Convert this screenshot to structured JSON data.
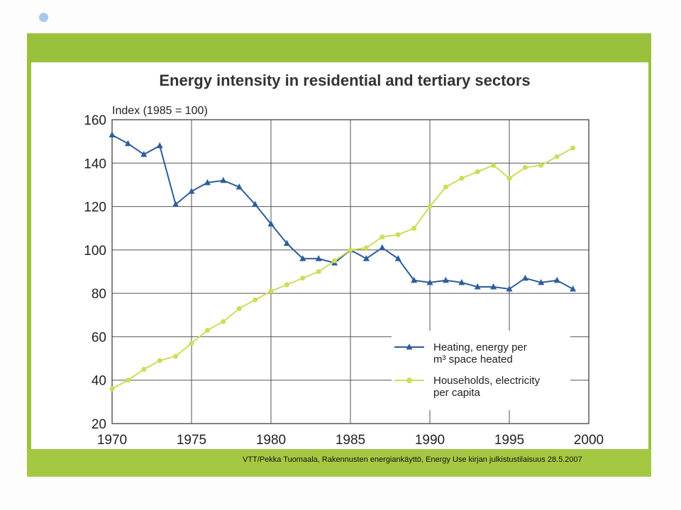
{
  "source_text": "VTT/Pekka Tuomaala, Rakennusten energiankäyttö, Energy Use kirjan julkistustilaisuus 28.5.2007",
  "colors": {
    "frame": "#99c13c",
    "heating": "#2e5d9a",
    "households": "#cfdc5a"
  },
  "chart_data": {
    "type": "line",
    "title": "Energy intensity in residential and tertiary sectors",
    "ylabel": "Index (1985 = 100)",
    "xlabel": "",
    "xlim": [
      1970,
      2000
    ],
    "ylim": [
      20,
      160
    ],
    "xticks": [
      1970,
      1975,
      1980,
      1985,
      1990,
      1995,
      2000
    ],
    "yticks": [
      20,
      40,
      60,
      80,
      100,
      120,
      140,
      160
    ],
    "grid": true,
    "legend_position": "bottom-right",
    "series": [
      {
        "name": "Heating, energy per m³ space heated",
        "legend_lines": [
          "Heating, energy per",
          "m³ space heated"
        ],
        "marker": "triangle",
        "color": "#2e5d9a",
        "x": [
          1970,
          1971,
          1972,
          1973,
          1974,
          1975,
          1976,
          1977,
          1978,
          1979,
          1980,
          1981,
          1982,
          1983,
          1984,
          1985,
          1986,
          1987,
          1988,
          1989,
          1990,
          1991,
          1992,
          1993,
          1994,
          1995,
          1996,
          1997,
          1998,
          1999
        ],
        "y": [
          153,
          149,
          144,
          148,
          121,
          127,
          131,
          132,
          129,
          121,
          112,
          103,
          96,
          96,
          94,
          100,
          96,
          101,
          96,
          86,
          85,
          86,
          85,
          83,
          83,
          82,
          87,
          85,
          86,
          82
        ]
      },
      {
        "name": "Households, electricity per capita",
        "legend_lines": [
          "Households, electricity",
          "per capita"
        ],
        "marker": "circle",
        "color": "#cfdc5a",
        "x": [
          1970,
          1971,
          1972,
          1973,
          1974,
          1975,
          1976,
          1977,
          1978,
          1979,
          1980,
          1981,
          1982,
          1983,
          1984,
          1985,
          1986,
          1987,
          1988,
          1989,
          1990,
          1991,
          1992,
          1993,
          1994,
          1995,
          1996,
          1997,
          1998,
          1999
        ],
        "y": [
          36,
          40,
          45,
          49,
          51,
          57,
          63,
          67,
          73,
          77,
          81,
          84,
          87,
          90,
          95,
          100,
          101,
          106,
          107,
          110,
          120,
          129,
          133,
          136,
          139,
          133,
          138,
          139,
          143,
          147
        ]
      }
    ]
  }
}
